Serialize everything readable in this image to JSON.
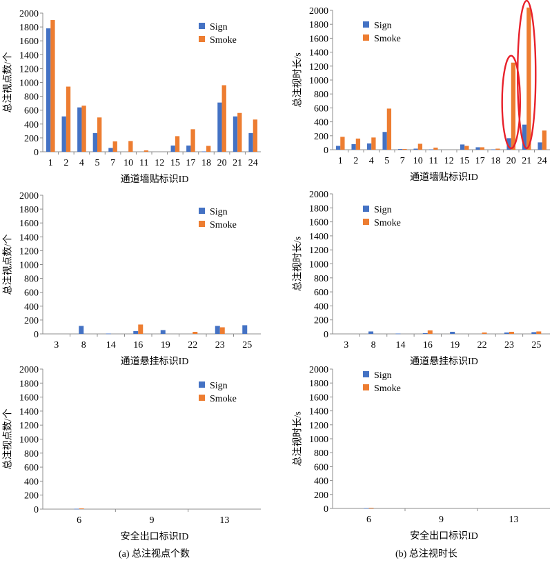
{
  "captions": {
    "a": "(a) 总注视点个数",
    "b": "(b) 总注视时长"
  },
  "chart_data": [
    {
      "type": "bar",
      "panel": "a-1",
      "ylabel": "总注视点数/个",
      "xlabel": "通道墙贴标识ID",
      "ylim": [
        0,
        2000
      ],
      "yticks": [
        0,
        200,
        400,
        600,
        800,
        1000,
        1200,
        1400,
        1600,
        1800,
        2000
      ],
      "categories": [
        "1",
        "2",
        "4",
        "5",
        "7",
        "10",
        "11",
        "12",
        "15",
        "17",
        "18",
        "20",
        "21",
        "24"
      ],
      "series": [
        {
          "name": "Sign",
          "color": "#4472C4",
          "values": [
            1780,
            510,
            640,
            270,
            55,
            0,
            0,
            0,
            90,
            90,
            5,
            710,
            510,
            270
          ]
        },
        {
          "name": "Smoke",
          "color": "#ED7D31",
          "values": [
            1900,
            940,
            665,
            495,
            150,
            155,
            20,
            0,
            225,
            325,
            85,
            960,
            560,
            465
          ]
        }
      ],
      "legend": "top-right",
      "grid": false
    },
    {
      "type": "bar",
      "panel": "b-1",
      "ylabel": "总注视时长/s",
      "xlabel": "通道墙贴标识ID",
      "ylim": [
        0,
        2000
      ],
      "yticks": [
        0,
        200,
        400,
        600,
        800,
        1000,
        1200,
        1400,
        1600,
        1800,
        2000
      ],
      "categories": [
        "1",
        "2",
        "4",
        "5",
        "7",
        "10",
        "11",
        "12",
        "15",
        "17",
        "18",
        "20",
        "21",
        "24"
      ],
      "series": [
        {
          "name": "Sign",
          "color": "#4472C4",
          "values": [
            55,
            80,
            90,
            255,
            10,
            15,
            5,
            0,
            75,
            35,
            5,
            165,
            360,
            105
          ]
        },
        {
          "name": "Smoke",
          "color": "#ED7D31",
          "values": [
            185,
            160,
            175,
            590,
            10,
            85,
            30,
            0,
            55,
            35,
            15,
            1250,
            2040,
            275
          ]
        }
      ],
      "annotations": [
        {
          "type": "ellipse",
          "color": "#E8212B",
          "categories": [
            "20"
          ]
        },
        {
          "type": "ellipse",
          "color": "#E8212B",
          "categories": [
            "21"
          ]
        }
      ],
      "legend": "top-right",
      "grid": false
    },
    {
      "type": "bar",
      "panel": "a-2",
      "ylabel": "总注视点数/个",
      "xlabel": "通道悬挂标识ID",
      "ylim": [
        0,
        2000
      ],
      "yticks": [
        0,
        200,
        400,
        600,
        800,
        1000,
        1200,
        1400,
        1600,
        1800,
        2000
      ],
      "categories": [
        "3",
        "8",
        "14",
        "16",
        "19",
        "22",
        "23",
        "25"
      ],
      "series": [
        {
          "name": "Sign",
          "color": "#4472C4",
          "values": [
            0,
            115,
            5,
            40,
            55,
            0,
            115,
            125
          ]
        },
        {
          "name": "Smoke",
          "color": "#ED7D31",
          "values": [
            0,
            0,
            0,
            135,
            0,
            30,
            95,
            0
          ]
        }
      ],
      "legend": "top-right",
      "grid": false
    },
    {
      "type": "bar",
      "panel": "b-2",
      "ylabel": "总注视时长/s",
      "xlabel": "通道悬挂标识ID",
      "ylim": [
        0,
        2000
      ],
      "yticks": [
        0,
        200,
        400,
        600,
        800,
        1000,
        1200,
        1400,
        1600,
        1800,
        2000
      ],
      "categories": [
        "3",
        "8",
        "14",
        "16",
        "19",
        "22",
        "23",
        "25"
      ],
      "series": [
        {
          "name": "Sign",
          "color": "#4472C4",
          "values": [
            0,
            35,
            5,
            10,
            30,
            0,
            20,
            25
          ]
        },
        {
          "name": "Smoke",
          "color": "#ED7D31",
          "values": [
            0,
            0,
            0,
            50,
            0,
            20,
            30,
            35
          ]
        }
      ],
      "legend": "top-right",
      "grid": false
    },
    {
      "type": "bar",
      "panel": "a-3",
      "ylabel": "总注视点数/个",
      "xlabel": "安全出口标识ID",
      "ylim": [
        0,
        2000
      ],
      "yticks": [
        0,
        200,
        400,
        600,
        800,
        1000,
        1200,
        1400,
        1600,
        1800,
        2000
      ],
      "categories": [
        "6",
        "9",
        "13"
      ],
      "series": [
        {
          "name": "Sign",
          "color": "#4472C4",
          "values": [
            5,
            0,
            0
          ]
        },
        {
          "name": "Smoke",
          "color": "#ED7D31",
          "values": [
            10,
            0,
            0
          ]
        }
      ],
      "legend": "top-right",
      "grid": false
    },
    {
      "type": "bar",
      "panel": "b-3",
      "ylabel": "总注视时长/s",
      "xlabel": "安全出口标识ID",
      "ylim": [
        0,
        2000
      ],
      "yticks": [
        0,
        200,
        400,
        600,
        800,
        1000,
        1200,
        1400,
        1600,
        1800,
        2000
      ],
      "categories": [
        "6",
        "9",
        "13"
      ],
      "series": [
        {
          "name": "Sign",
          "color": "#4472C4",
          "values": [
            5,
            0,
            0
          ]
        },
        {
          "name": "Smoke",
          "color": "#ED7D31",
          "values": [
            10,
            0,
            0
          ]
        }
      ],
      "legend": "top-right",
      "grid": false
    }
  ]
}
